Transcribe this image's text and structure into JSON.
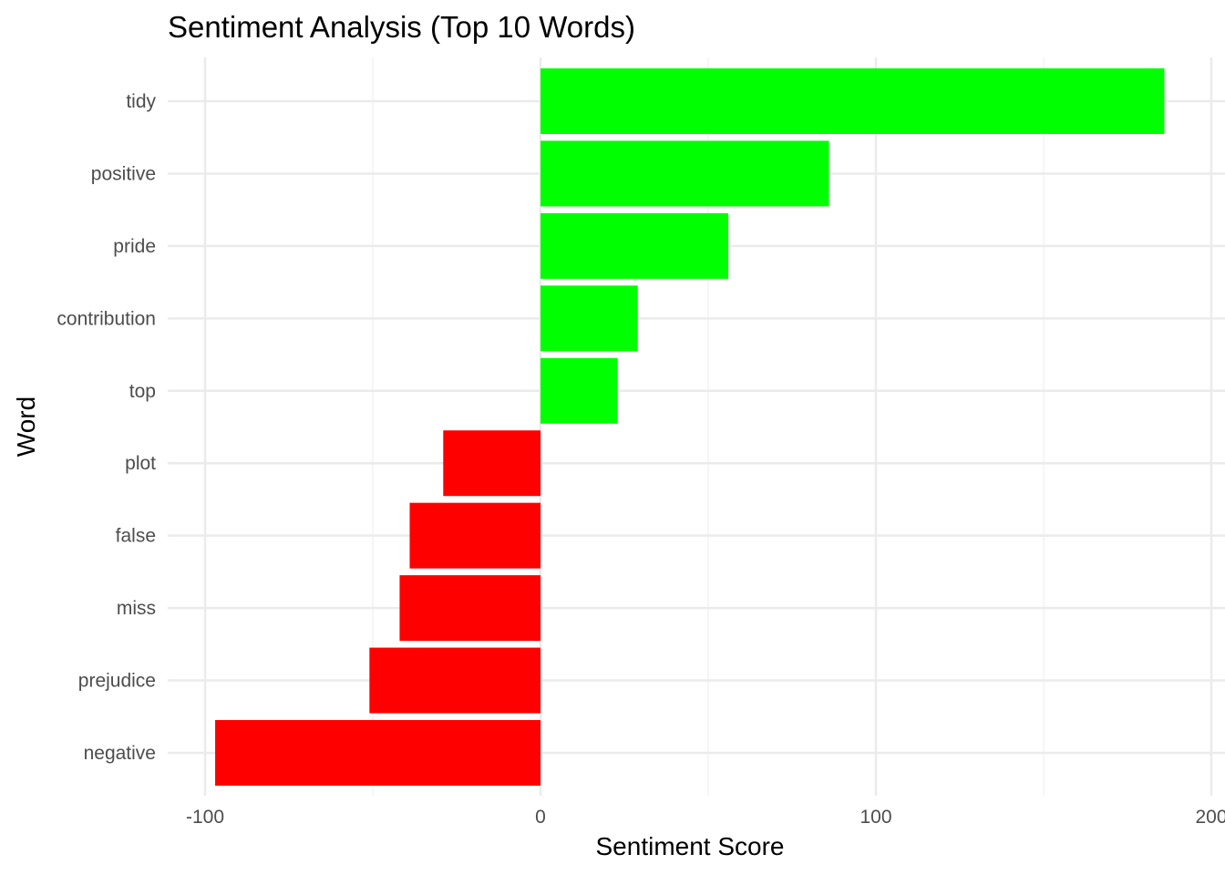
{
  "chart_data": {
    "type": "bar",
    "orientation": "horizontal",
    "title": "Sentiment Analysis (Top 10 Words)",
    "xlabel": "Sentiment Score",
    "ylabel": "Word",
    "xlim": [
      -100,
      200
    ],
    "x_ticks": [
      -100,
      0,
      100,
      200
    ],
    "x_tick_labels": [
      "-100",
      "0",
      "100",
      "200"
    ],
    "grid": true,
    "legend": "none",
    "categories": [
      "tidy",
      "positive",
      "pride",
      "contribution",
      "top",
      "plot",
      "false",
      "miss",
      "prejudice",
      "negative"
    ],
    "values": [
      186,
      86,
      56,
      29,
      23,
      -29,
      -39,
      -42,
      -51,
      -97
    ],
    "colors": {
      "positive": "#00ff00",
      "negative": "#ff0000"
    }
  }
}
